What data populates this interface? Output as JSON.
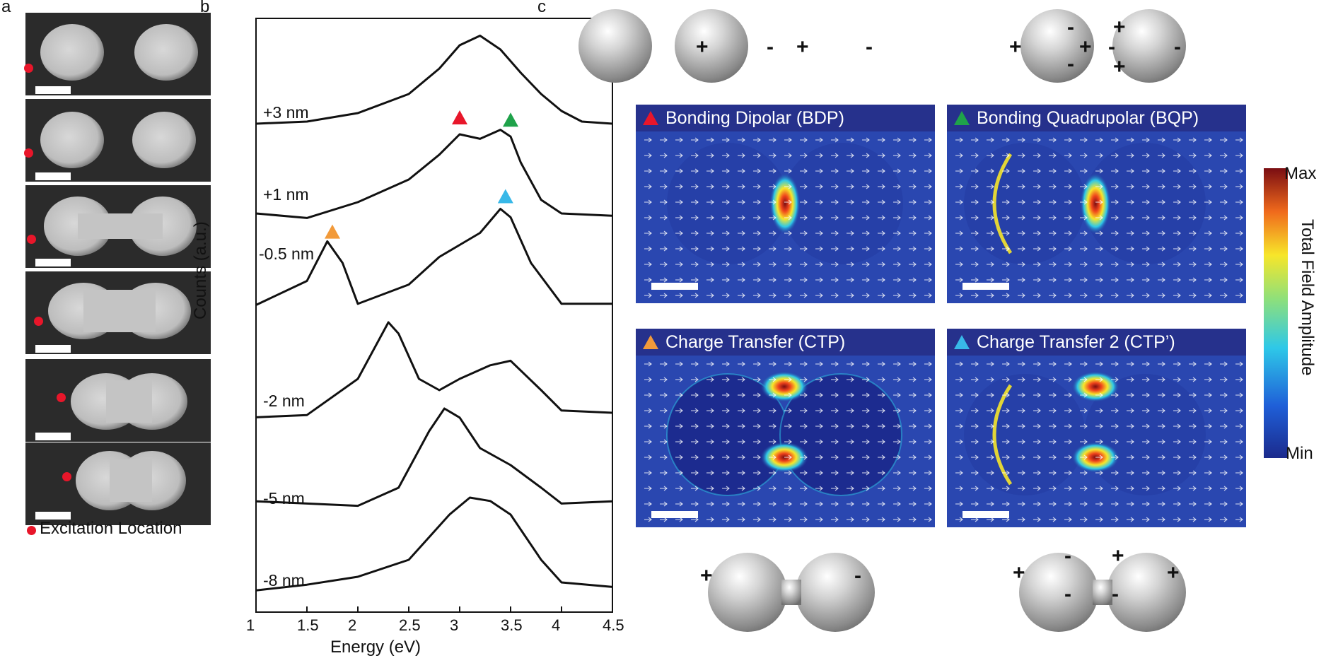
{
  "panel_labels": {
    "a": "a",
    "b": "b",
    "c": "c"
  },
  "panel_a": {
    "legend": "Excitation Location",
    "legend_color": "#e8162a",
    "tiles": [
      "tile-1",
      "tile-2",
      "tile-3",
      "tile-4",
      "tile-5",
      "tile-6"
    ]
  },
  "chart_data": {
    "type": "line",
    "xlabel": "Energy (eV)",
    "ylabel": "Counts (a.u.)",
    "xlim": [
      1,
      4.5
    ],
    "xticks": [
      "1",
      "1.5",
      "2",
      "2.5",
      "3",
      "3.5",
      "4",
      "4.5"
    ],
    "grid": false,
    "series": [
      {
        "name": "+3 nm",
        "x": [
          1.0,
          1.5,
          2.0,
          2.5,
          2.8,
          3.0,
          3.2,
          3.4,
          3.6,
          3.8,
          4.0,
          4.2,
          4.5
        ],
        "y": [
          0.1,
          0.12,
          0.2,
          0.38,
          0.62,
          0.84,
          0.93,
          0.8,
          0.58,
          0.38,
          0.22,
          0.12,
          0.1
        ]
      },
      {
        "name": "+1 nm",
        "x": [
          1.0,
          1.5,
          2.0,
          2.5,
          2.8,
          3.0,
          3.2,
          3.4,
          3.5,
          3.6,
          3.8,
          4.0,
          4.5
        ],
        "y": [
          0.1,
          0.06,
          0.2,
          0.4,
          0.62,
          0.8,
          0.76,
          0.84,
          0.78,
          0.55,
          0.22,
          0.1,
          0.08
        ]
      },
      {
        "name": "-0.5 nm",
        "x": [
          1.0,
          1.5,
          1.7,
          1.85,
          2.0,
          2.5,
          2.8,
          3.0,
          3.2,
          3.4,
          3.5,
          3.7,
          4.0,
          4.5
        ],
        "y": [
          0.05,
          0.25,
          0.58,
          0.4,
          0.06,
          0.22,
          0.45,
          0.55,
          0.65,
          0.85,
          0.78,
          0.4,
          0.06,
          0.06
        ]
      },
      {
        "name": "-2 nm",
        "x": [
          1.0,
          1.5,
          2.0,
          2.3,
          2.4,
          2.6,
          2.8,
          3.0,
          3.3,
          3.5,
          3.8,
          4.0,
          4.5
        ],
        "y": [
          0.06,
          0.08,
          0.4,
          0.9,
          0.8,
          0.4,
          0.3,
          0.4,
          0.52,
          0.56,
          0.3,
          0.12,
          0.1
        ]
      },
      {
        "name": "-5 nm",
        "x": [
          1.0,
          1.5,
          2.0,
          2.4,
          2.7,
          2.85,
          3.0,
          3.2,
          3.5,
          3.8,
          4.0,
          4.5
        ],
        "y": [
          0.08,
          0.06,
          0.04,
          0.2,
          0.7,
          0.9,
          0.82,
          0.55,
          0.4,
          0.2,
          0.06,
          0.08
        ]
      },
      {
        "name": "-8 nm",
        "x": [
          1.0,
          1.5,
          2.0,
          2.5,
          2.9,
          3.1,
          3.3,
          3.5,
          3.8,
          4.0,
          4.5
        ],
        "y": [
          0.03,
          0.08,
          0.15,
          0.3,
          0.7,
          0.85,
          0.82,
          0.7,
          0.3,
          0.1,
          0.06
        ]
      }
    ],
    "markers": [
      {
        "series": "+1 nm",
        "x": 3.0,
        "color": "#e8162a"
      },
      {
        "series": "+1 nm",
        "x": 3.5,
        "color": "#1fa24a"
      },
      {
        "series": "-0.5 nm",
        "x": 3.45,
        "color": "#38b8e8"
      },
      {
        "series": "-0.5 nm",
        "x": 1.75,
        "color": "#f29a3a"
      }
    ]
  },
  "panel_c": {
    "modes": [
      {
        "label": "Bonding Dipolar (BDP)",
        "color": "#e8162a"
      },
      {
        "label": "Bonding Quadrupolar (BQP)",
        "color": "#1fa24a"
      },
      {
        "label": "Charge Transfer (CTP)",
        "color": "#f29a3a"
      },
      {
        "label": "Charge Transfer 2 (CTP’)",
        "color": "#38b8e8"
      }
    ],
    "signs": {
      "bdp": [
        "+",
        "-",
        "+",
        "-"
      ],
      "bqp": [
        "+",
        "-",
        "+",
        "-",
        "+",
        "-",
        "+",
        "-"
      ],
      "ctp": [
        "+",
        "-"
      ],
      "ctp2": [
        "+",
        "-",
        "-",
        "+",
        "-",
        "+"
      ]
    },
    "colorbar": {
      "max": "Max",
      "min": "Min",
      "title": "Total Field Amplitude"
    }
  }
}
